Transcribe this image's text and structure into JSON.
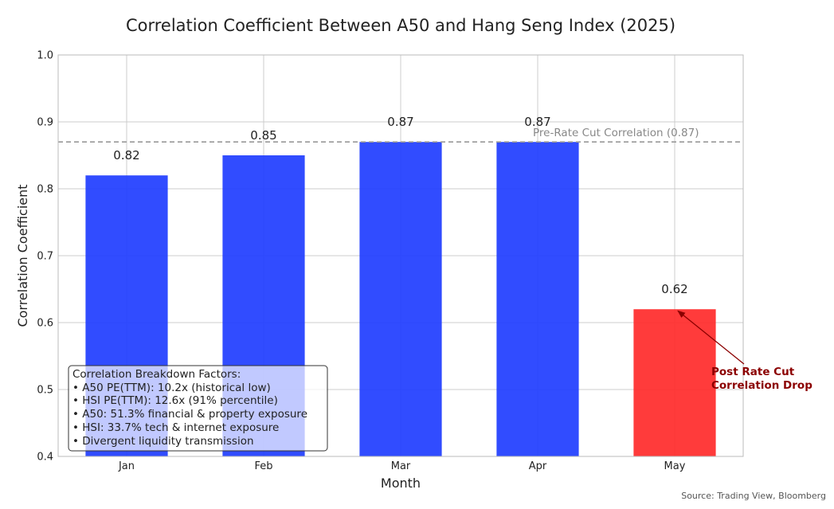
{
  "chart_data": {
    "type": "bar",
    "title": "Correlation Coefficient Between A50 and Hang Seng Index (2025)",
    "xlabel": "Month",
    "ylabel": "Correlation Coefficient",
    "categories": [
      "Jan",
      "Feb",
      "Mar",
      "Apr",
      "May"
    ],
    "values": [
      0.82,
      0.85,
      0.87,
      0.87,
      0.62
    ],
    "value_labels": [
      "0.82",
      "0.85",
      "0.87",
      "0.87",
      "0.62"
    ],
    "bar_colors": [
      "#1f3dff",
      "#1f3dff",
      "#1f3dff",
      "#1f3dff",
      "#ff2a2a"
    ],
    "ylim": [
      0.4,
      1.0
    ],
    "yticks": [
      "0.4",
      "0.5",
      "0.6",
      "0.7",
      "0.8",
      "0.9",
      "1.0"
    ],
    "yticks_values": [
      0.4,
      0.5,
      0.6,
      0.7,
      0.8,
      0.9,
      1.0
    ],
    "grid": true,
    "reference_line": {
      "value": 0.87,
      "label": "Pre-Rate Cut Correlation (0.87)",
      "color": "#999999",
      "style": "dashed"
    },
    "annotation": {
      "lines": [
        "Post Rate Cut",
        "Correlation Drop"
      ],
      "target_category": "May",
      "target_value": 0.62,
      "color": "#8b0000"
    },
    "info_box": {
      "title": "Correlation Breakdown Factors:",
      "items": [
        "• A50 PE(TTM): 10.2x (historical low)",
        "• HSI PE(TTM): 12.6x (91% percentile)",
        "• A50: 51.3% financial & property exposure",
        "• HSI: 33.7% tech & internet exposure",
        "• Divergent liquidity transmission"
      ],
      "placement": "bottom-left"
    },
    "source": "Source: Trading View, Bloomberg"
  }
}
